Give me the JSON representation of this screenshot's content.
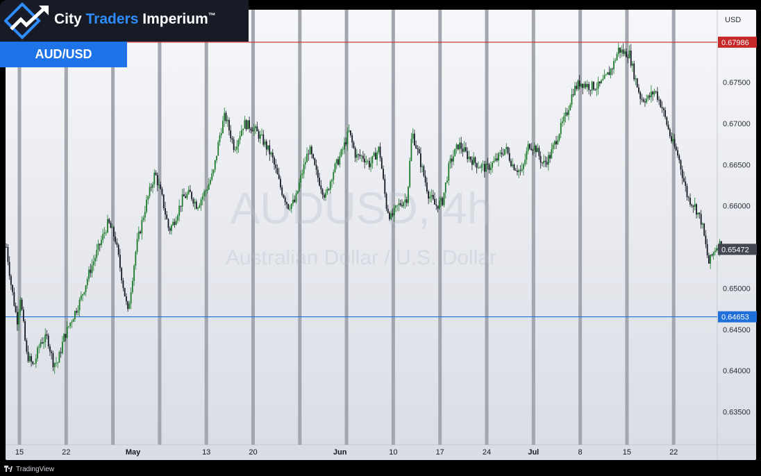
{
  "brand": {
    "name_part1": "City ",
    "name_accent": "Traders",
    "name_part2": " Imperium",
    "trademark": "™"
  },
  "pair_label": "AUD/USD",
  "footer_label": "TradingView",
  "chart_data": {
    "type": "candlestick",
    "symbol": "AUDUSD, 4h",
    "description": "Australian Dollar / U.S. Dollar",
    "currency": "USD",
    "ylim": [
      0.631,
      0.6838
    ],
    "y_ticks": [
      "0.63500",
      "0.64000",
      "0.64500",
      "0.65000",
      "0.66000",
      "0.66500",
      "0.67000",
      "0.67500"
    ],
    "x_ticks": [
      {
        "label": "15",
        "week": 0,
        "bold": false
      },
      {
        "label": "22",
        "week": 1,
        "bold": false
      },
      {
        "label": "May",
        "week": 2.43,
        "bold": true
      },
      {
        "label": "13",
        "week": 4,
        "bold": false
      },
      {
        "label": "20",
        "week": 5,
        "bold": false
      },
      {
        "label": "Jun",
        "week": 6.86,
        "bold": true
      },
      {
        "label": "10",
        "week": 8,
        "bold": false
      },
      {
        "label": "17",
        "week": 9,
        "bold": false
      },
      {
        "label": "24",
        "week": 10,
        "bold": false
      },
      {
        "label": "Jul",
        "week": 11,
        "bold": true
      },
      {
        "label": "8",
        "week": 12,
        "bold": false
      },
      {
        "label": "15",
        "week": 13,
        "bold": false
      },
      {
        "label": "22",
        "week": 14,
        "bold": false
      }
    ],
    "weekly_separators": [
      0,
      1,
      2,
      3,
      4,
      5,
      6,
      7,
      8,
      9,
      10,
      11,
      12,
      13,
      14
    ],
    "horizontal_levels": [
      {
        "value": 0.67986,
        "label": "0.67986",
        "color": "#c62828"
      },
      {
        "value": 0.64653,
        "label": "0.64653",
        "color": "#1e6fd9"
      }
    ],
    "last_price": {
      "value": 0.65472,
      "label": "0.65472"
    },
    "close_path": [
      [
        -0.28,
        0.655
      ],
      [
        -0.18,
        0.6505
      ],
      [
        -0.05,
        0.646
      ],
      [
        0.02,
        0.649
      ],
      [
        0.15,
        0.642
      ],
      [
        0.3,
        0.6405
      ],
      [
        0.45,
        0.6435
      ],
      [
        0.6,
        0.644
      ],
      [
        0.72,
        0.641
      ],
      [
        0.82,
        0.641
      ],
      [
        0.95,
        0.644
      ],
      [
        1.1,
        0.646
      ],
      [
        1.3,
        0.6485
      ],
      [
        1.5,
        0.652
      ],
      [
        1.7,
        0.655
      ],
      [
        1.9,
        0.658
      ],
      [
        2.05,
        0.656
      ],
      [
        2.2,
        0.651
      ],
      [
        2.32,
        0.647
      ],
      [
        2.5,
        0.655
      ],
      [
        2.7,
        0.66
      ],
      [
        2.9,
        0.664
      ],
      [
        3.05,
        0.661
      ],
      [
        3.2,
        0.657
      ],
      [
        3.3,
        0.658
      ],
      [
        3.5,
        0.661
      ],
      [
        3.65,
        0.6615
      ],
      [
        3.8,
        0.66
      ],
      [
        4.0,
        0.662
      ],
      [
        4.15,
        0.664
      ],
      [
        4.3,
        0.669
      ],
      [
        4.4,
        0.671
      ],
      [
        4.6,
        0.667
      ],
      [
        4.8,
        0.67
      ],
      [
        5.0,
        0.6695
      ],
      [
        5.2,
        0.668
      ],
      [
        5.4,
        0.666
      ],
      [
        5.6,
        0.662
      ],
      [
        5.75,
        0.66
      ],
      [
        5.9,
        0.6605
      ],
      [
        6.0,
        0.663
      ],
      [
        6.2,
        0.667
      ],
      [
        6.35,
        0.664
      ],
      [
        6.55,
        0.661
      ],
      [
        6.7,
        0.664
      ],
      [
        6.9,
        0.6665
      ],
      [
        7.05,
        0.669
      ],
      [
        7.2,
        0.666
      ],
      [
        7.35,
        0.666
      ],
      [
        7.5,
        0.665
      ],
      [
        7.7,
        0.667
      ],
      [
        7.85,
        0.66
      ],
      [
        7.95,
        0.6585
      ],
      [
        8.1,
        0.66
      ],
      [
        8.3,
        0.661
      ],
      [
        8.4,
        0.669
      ],
      [
        8.55,
        0.666
      ],
      [
        8.75,
        0.6615
      ],
      [
        8.9,
        0.66
      ],
      [
        9.05,
        0.6605
      ],
      [
        9.2,
        0.665
      ],
      [
        9.4,
        0.6675
      ],
      [
        9.6,
        0.666
      ],
      [
        9.8,
        0.665
      ],
      [
        10.0,
        0.6645
      ],
      [
        10.2,
        0.6655
      ],
      [
        10.4,
        0.667
      ],
      [
        10.55,
        0.665
      ],
      [
        10.75,
        0.664
      ],
      [
        10.9,
        0.6675
      ],
      [
        11.05,
        0.667
      ],
      [
        11.2,
        0.665
      ],
      [
        11.35,
        0.666
      ],
      [
        11.55,
        0.669
      ],
      [
        11.7,
        0.671
      ],
      [
        11.85,
        0.674
      ],
      [
        12.0,
        0.675
      ],
      [
        12.2,
        0.6745
      ],
      [
        12.4,
        0.6745
      ],
      [
        12.55,
        0.6755
      ],
      [
        12.7,
        0.677
      ],
      [
        12.82,
        0.679
      ],
      [
        12.95,
        0.6785
      ],
      [
        13.05,
        0.6785
      ],
      [
        13.15,
        0.676
      ],
      [
        13.3,
        0.673
      ],
      [
        13.45,
        0.673
      ],
      [
        13.6,
        0.674
      ],
      [
        13.75,
        0.672
      ],
      [
        13.95,
        0.668
      ],
      [
        14.1,
        0.666
      ],
      [
        14.3,
        0.661
      ],
      [
        14.45,
        0.66
      ],
      [
        14.6,
        0.658
      ],
      [
        14.75,
        0.653
      ],
      [
        14.9,
        0.655
      ],
      [
        15.02,
        0.6555
      ],
      [
        15.08,
        0.6547
      ]
    ]
  }
}
